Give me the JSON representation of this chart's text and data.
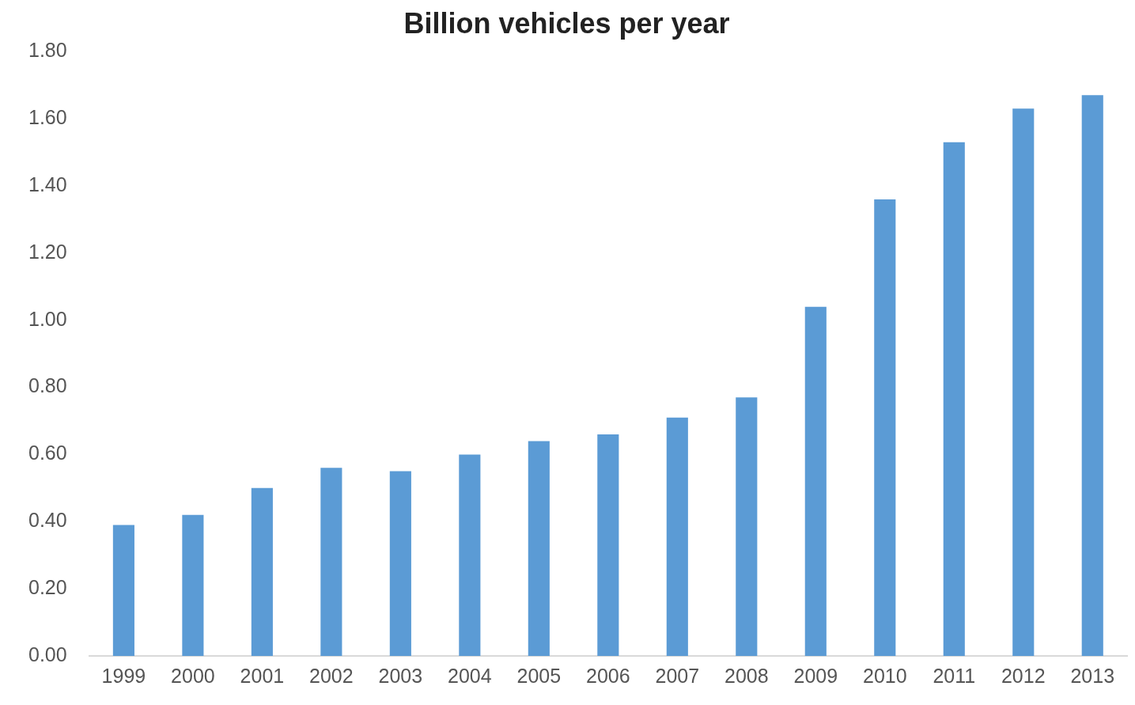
{
  "chart_data": {
    "type": "bar",
    "title": "Billion vehicles per year",
    "categories": [
      "1999",
      "2000",
      "2001",
      "2002",
      "2003",
      "2004",
      "2005",
      "2006",
      "2007",
      "2008",
      "2009",
      "2010",
      "2011",
      "2012",
      "2013"
    ],
    "values": [
      0.39,
      0.42,
      0.5,
      0.56,
      0.55,
      0.6,
      0.64,
      0.66,
      0.71,
      0.77,
      1.04,
      1.36,
      1.53,
      1.63,
      1.67
    ],
    "color": "#5b9bd5",
    "ylim": [
      0,
      1.8
    ],
    "yticks": [
      {
        "value": 0,
        "label": "0.00"
      },
      {
        "value": 0.2,
        "label": "0.20"
      },
      {
        "value": 0.4,
        "label": "0.40"
      },
      {
        "value": 0.6,
        "label": "0.60"
      },
      {
        "value": 0.8,
        "label": "0.80"
      },
      {
        "value": 1,
        "label": "1.00"
      },
      {
        "value": 1.2,
        "label": "1.20"
      },
      {
        "value": 1.4,
        "label": "1.40"
      },
      {
        "value": 1.6,
        "label": "1.60"
      },
      {
        "value": 1.8,
        "label": "1.80"
      }
    ],
    "grid": false,
    "legend": false
  }
}
